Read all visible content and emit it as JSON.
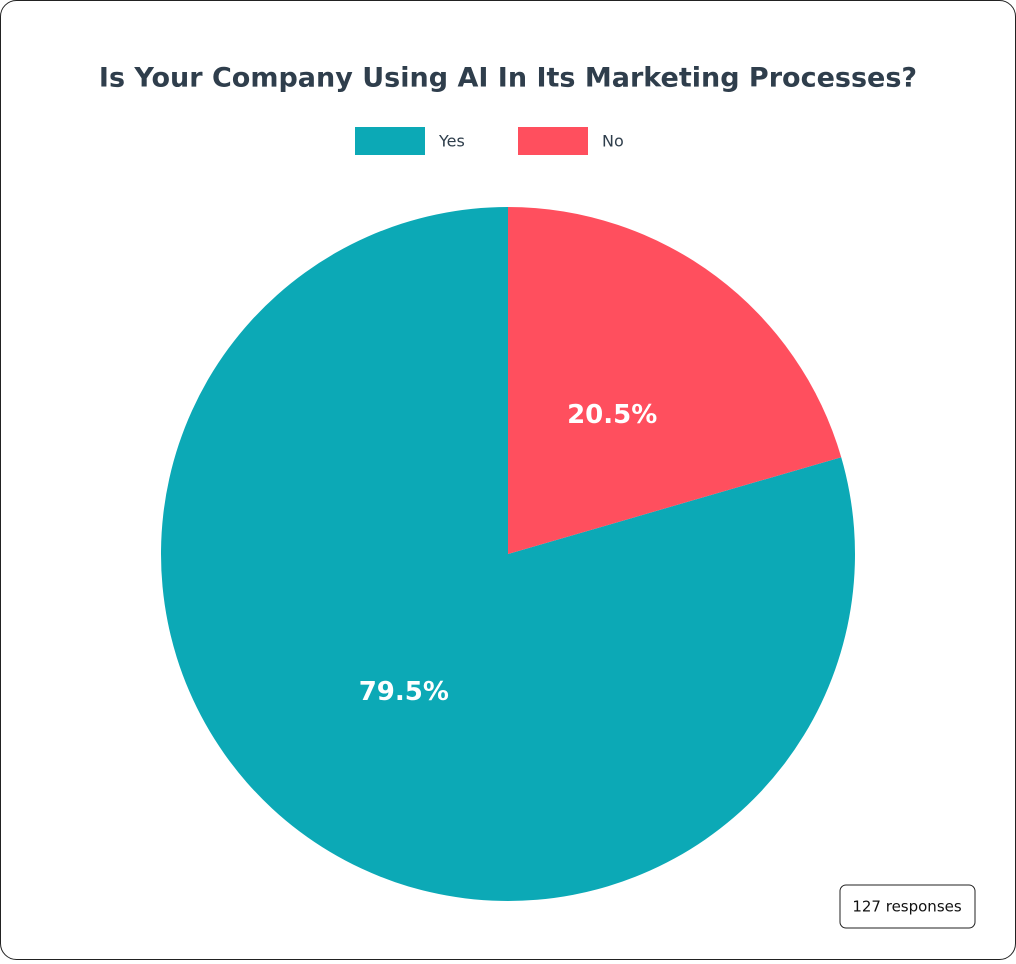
{
  "chart_data": {
    "type": "pie",
    "title": "Is Your Company Using AI In Its Marketing Processes?",
    "categories": [
      "Yes",
      "No"
    ],
    "values": [
      79.5,
      20.5
    ],
    "value_labels": [
      "79.5%",
      "20.5%"
    ],
    "colors": [
      "#0ca9b6",
      "#ff4f5e"
    ],
    "annotation": "127 responses"
  }
}
